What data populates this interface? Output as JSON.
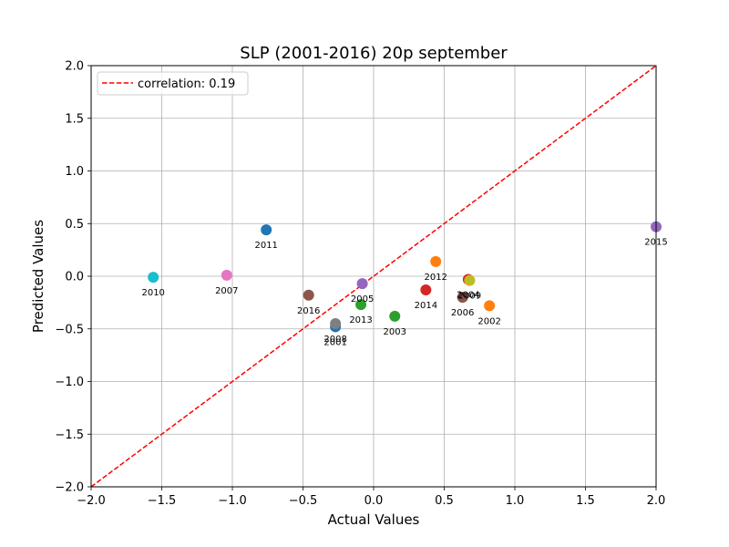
{
  "chart_data": {
    "type": "scatter",
    "title": "SLP (2001-2016) 20p september",
    "xlabel": "Actual Values",
    "ylabel": "Predicted Values",
    "xlim": [
      -2.0,
      2.0
    ],
    "ylim": [
      -2.0,
      2.0
    ],
    "xticks": [
      "−2.0",
      "−1.5",
      "−1.0",
      "−0.5",
      "0.0",
      "0.5",
      "1.0",
      "1.5",
      "2.0"
    ],
    "yticks": [
      "−2.0",
      "−1.5",
      "−1.0",
      "−0.5",
      "0.0",
      "0.5",
      "1.0",
      "1.5",
      "2.0"
    ],
    "xtick_values": [
      -2.0,
      -1.5,
      -1.0,
      -0.5,
      0.0,
      0.5,
      1.0,
      1.5,
      2.0
    ],
    "ytick_values": [
      -2.0,
      -1.5,
      -1.0,
      -0.5,
      0.0,
      0.5,
      1.0,
      1.5,
      2.0
    ],
    "grid": true,
    "legend": {
      "placement": "top-left",
      "entries": [
        {
          "label": "correlation: 0.19",
          "color": "#ff0000",
          "style": "dashed"
        }
      ]
    },
    "reference_line": {
      "x": [
        -2.0,
        2.0
      ],
      "y": [
        -2.0,
        2.0
      ],
      "color": "#ff0000",
      "style": "dashed"
    },
    "points": [
      {
        "label": "2001",
        "x": -0.27,
        "y": -0.48,
        "color": "#1f77b4"
      },
      {
        "label": "2002",
        "x": 0.82,
        "y": -0.28,
        "color": "#ff7f0e"
      },
      {
        "label": "2003",
        "x": 0.15,
        "y": -0.38,
        "color": "#2ca02c"
      },
      {
        "label": "2004",
        "x": 0.67,
        "y": -0.03,
        "color": "#d62728"
      },
      {
        "label": "2005",
        "x": -0.08,
        "y": -0.07,
        "color": "#9467bd"
      },
      {
        "label": "2006",
        "x": 0.63,
        "y": -0.2,
        "color": "#8c564b"
      },
      {
        "label": "2007",
        "x": -1.04,
        "y": 0.01,
        "color": "#e377c2"
      },
      {
        "label": "2008",
        "x": -0.27,
        "y": -0.45,
        "color": "#7f7f7f"
      },
      {
        "label": "2009",
        "x": 0.68,
        "y": -0.04,
        "color": "#bcbd22"
      },
      {
        "label": "2010",
        "x": -1.56,
        "y": -0.01,
        "color": "#17becf"
      },
      {
        "label": "2011",
        "x": -0.76,
        "y": 0.44,
        "color": "#1f77b4"
      },
      {
        "label": "2012",
        "x": 0.44,
        "y": 0.14,
        "color": "#ff7f0e"
      },
      {
        "label": "2013",
        "x": -0.09,
        "y": -0.27,
        "color": "#2ca02c"
      },
      {
        "label": "2014",
        "x": 0.37,
        "y": -0.13,
        "color": "#d62728"
      },
      {
        "label": "2015",
        "x": 2.0,
        "y": 0.47,
        "color": "#9467bd"
      },
      {
        "label": "2016",
        "x": -0.46,
        "y": -0.18,
        "color": "#8c564b"
      }
    ]
  }
}
